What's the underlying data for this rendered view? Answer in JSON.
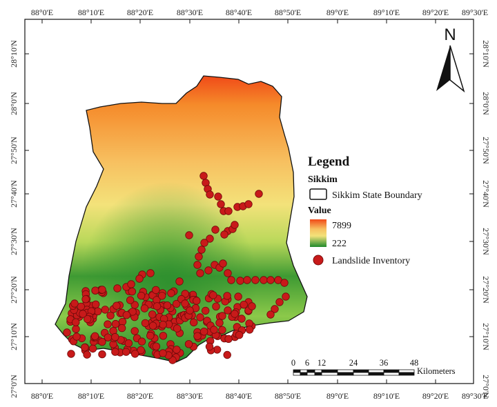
{
  "map": {
    "top_ticks": [
      "88°0'E",
      "88°10'E",
      "88°20'E",
      "88°30'E",
      "88°40'E",
      "88°50'E",
      "89°0'E",
      "89°10'E",
      "89°20'E",
      "89°30'E"
    ],
    "bottom_ticks": [
      "88°0'E",
      "88°10'E",
      "88°20'E",
      "88°30'E",
      "88°40'E",
      "88°50'E",
      "89°0'E",
      "89°10'E",
      "89°20'E",
      "89°30'E"
    ],
    "left_ticks": [
      "28°10'N",
      "28°0'N",
      "27°50'N",
      "27°40'N",
      "27°30'N",
      "27°20'N",
      "27°10'N",
      "27°0'N"
    ],
    "right_ticks": [
      "28°10'N",
      "28°0'N",
      "27°50'N",
      "27°40'N",
      "27°30'N",
      "27°20'N",
      "27°10'N",
      "27°0'N"
    ]
  },
  "north_arrow": {
    "label": "N"
  },
  "legend": {
    "title": "Legend",
    "boundary_heading": "Sikkim",
    "boundary_label": "Sikkim State Boundary",
    "value_heading": "Value",
    "value_high": "7899",
    "value_low": "222",
    "points_label": "Landslide Inventory",
    "colors": {
      "high": "#f04a18",
      "mid": "#f5e37a",
      "low": "#1f8a2c",
      "points": "#c81a1a"
    }
  },
  "scale_bar": {
    "labels": [
      "0",
      "6",
      "12",
      "24",
      "36",
      "48"
    ],
    "unit": "Kilometers"
  }
}
